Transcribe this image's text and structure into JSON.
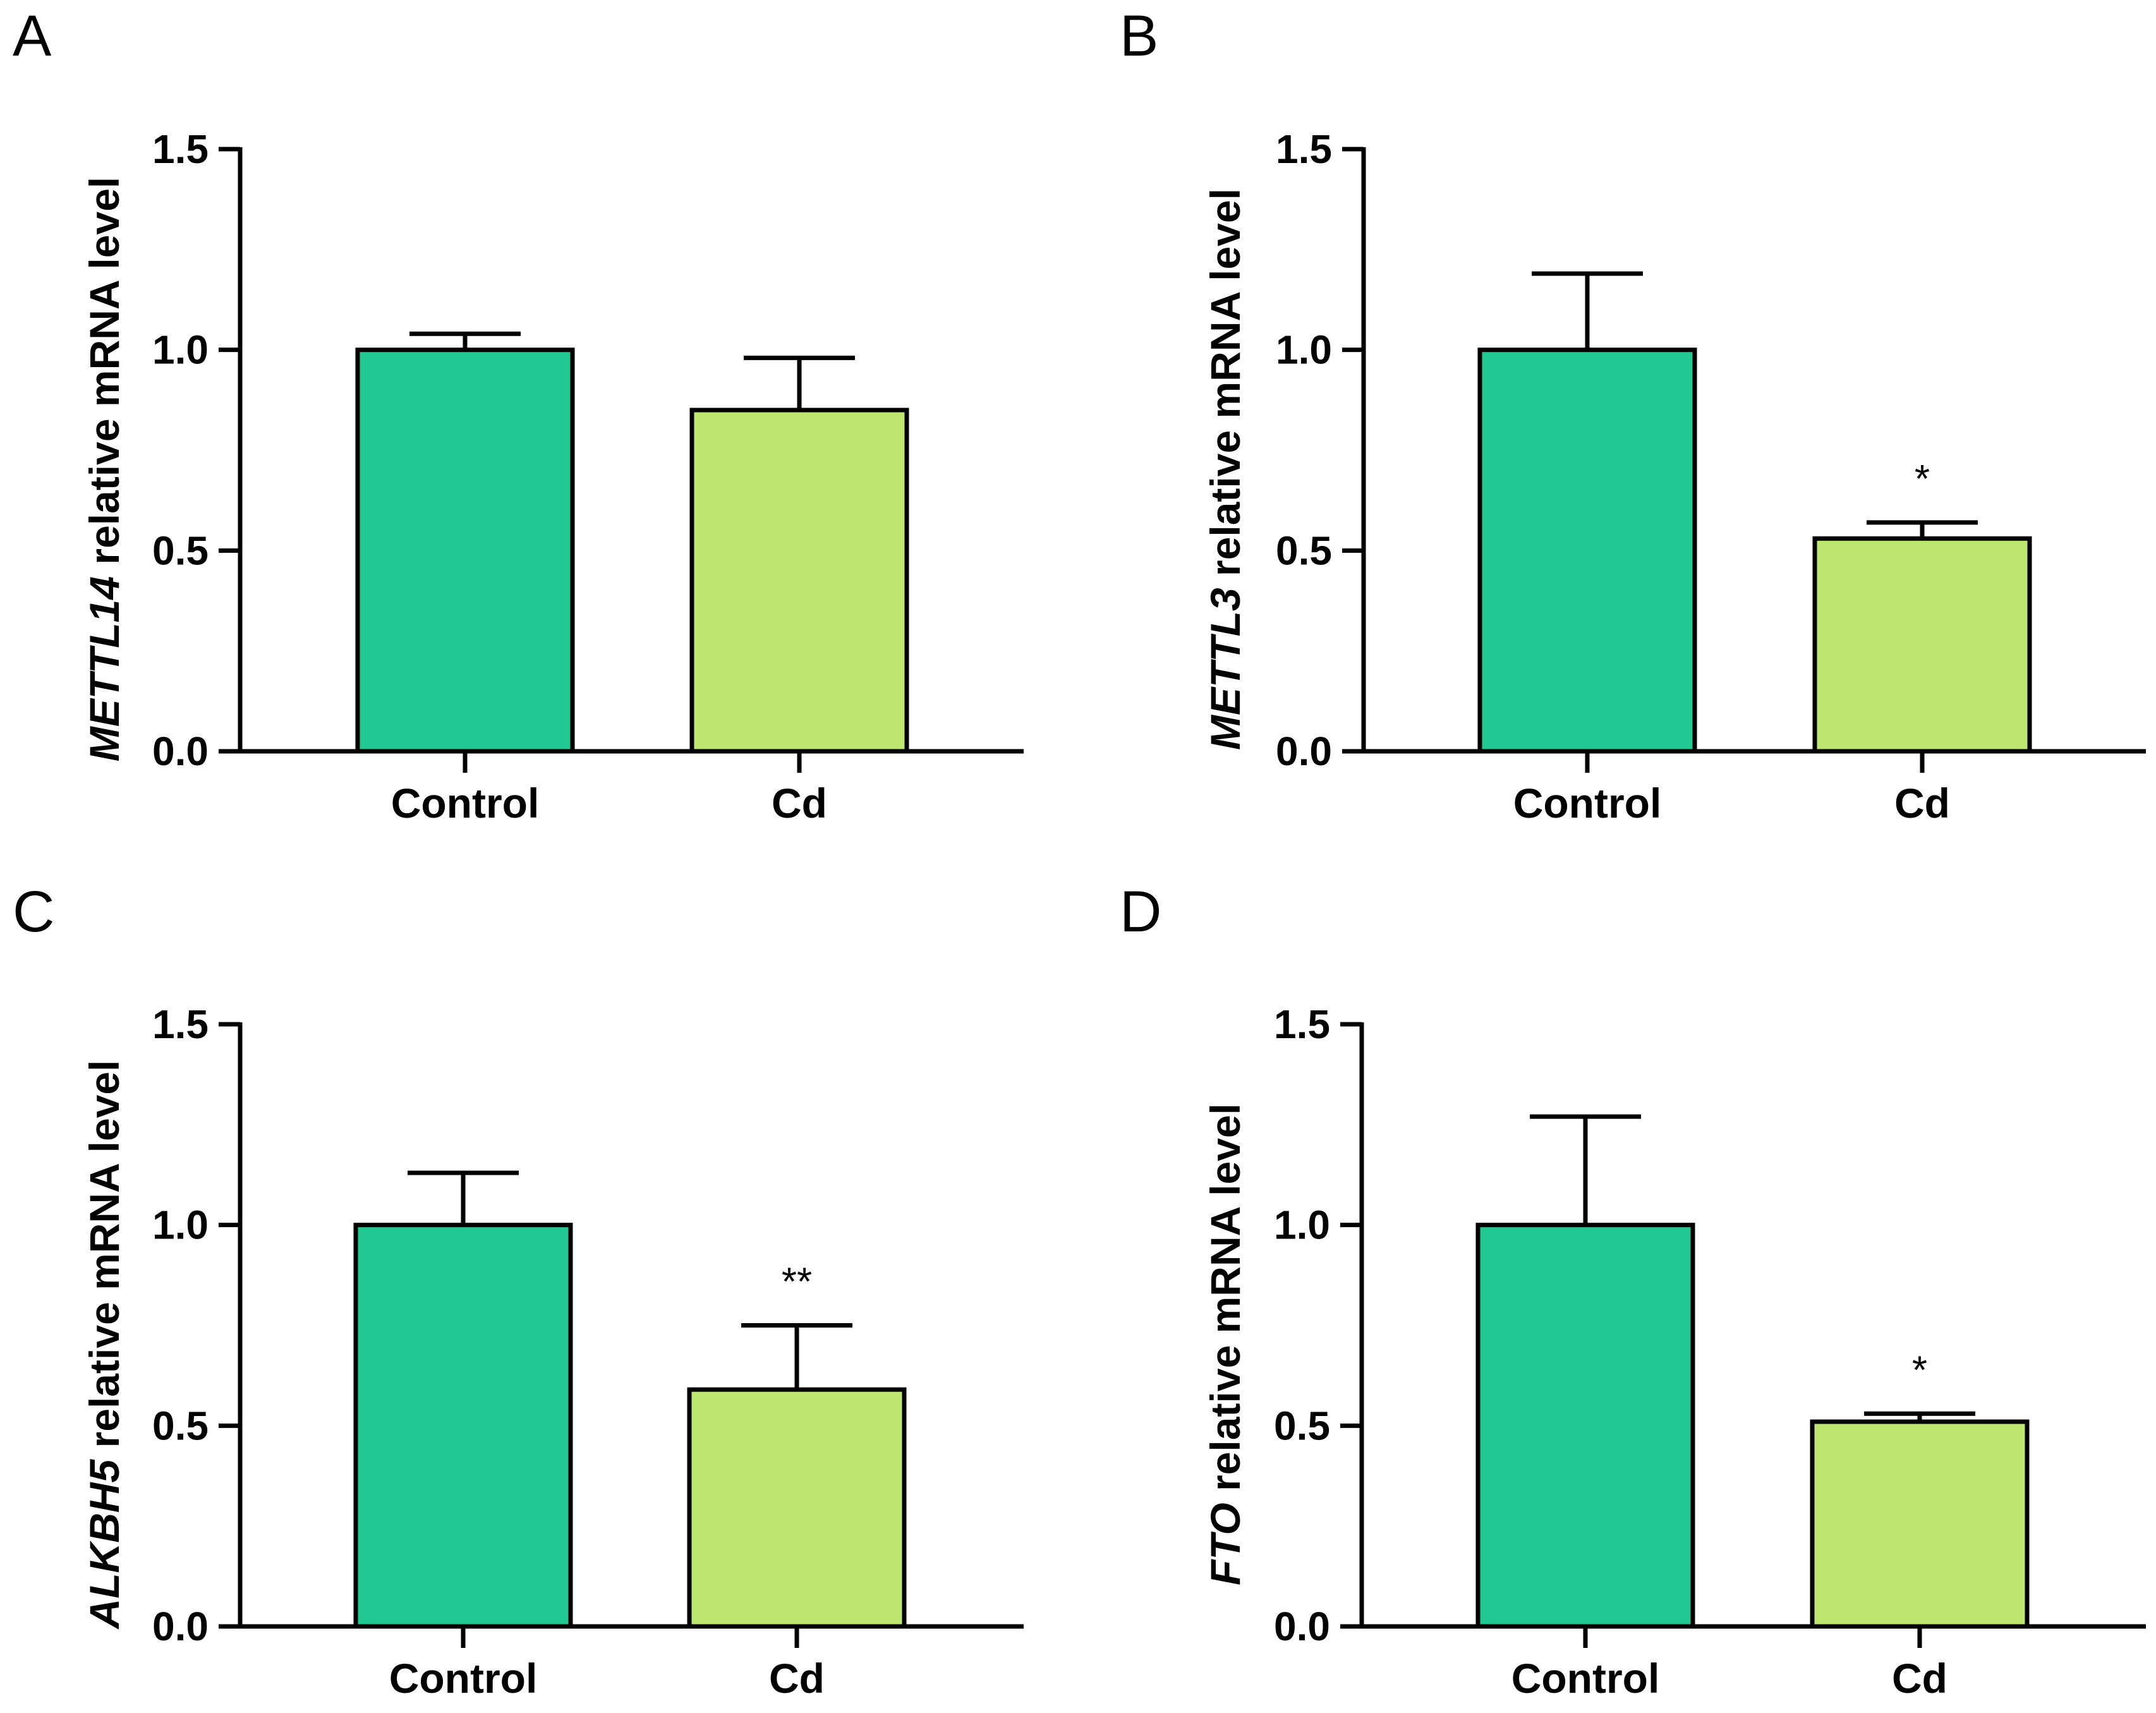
{
  "chart_data": [
    {
      "panel": "A",
      "type": "bar",
      "gene": "METTL14",
      "ylabel_suffix": " relative mRNA level",
      "categories": [
        "Control",
        "Cd"
      ],
      "values": [
        1.0,
        0.85
      ],
      "errors": [
        0.04,
        0.13
      ],
      "significance": [
        "",
        ""
      ],
      "colors": [
        "#23C792",
        "#BEE772"
      ],
      "ylim": [
        0,
        1.5
      ],
      "yticks": [
        0.0,
        0.5,
        1.0,
        1.5
      ],
      "ytick_labels": [
        "0.0",
        "0.5",
        "1.0",
        "1.5"
      ]
    },
    {
      "panel": "B",
      "type": "bar",
      "gene": "METTL3",
      "ylabel_suffix": " relative mRNA level",
      "categories": [
        "Control",
        "Cd"
      ],
      "values": [
        1.0,
        0.53
      ],
      "errors": [
        0.19,
        0.04
      ],
      "significance": [
        "",
        "*"
      ],
      "colors": [
        "#23C792",
        "#BEE772"
      ],
      "ylim": [
        0,
        1.5
      ],
      "yticks": [
        0.0,
        0.5,
        1.0,
        1.5
      ],
      "ytick_labels": [
        "0.0",
        "0.5",
        "1.0",
        "1.5"
      ]
    },
    {
      "panel": "C",
      "type": "bar",
      "gene": "ALKBH5",
      "ylabel_suffix": " relative mRNA level",
      "categories": [
        "Control",
        "Cd"
      ],
      "values": [
        1.0,
        0.59
      ],
      "errors": [
        0.13,
        0.16
      ],
      "significance": [
        "",
        "**"
      ],
      "colors": [
        "#23C792",
        "#BEE772"
      ],
      "ylim": [
        0,
        1.5
      ],
      "yticks": [
        0.0,
        0.5,
        1.0,
        1.5
      ],
      "ytick_labels": [
        "0.0",
        "0.5",
        "1.0",
        "1.5"
      ]
    },
    {
      "panel": "D",
      "type": "bar",
      "gene": "FTO",
      "ylabel_suffix": " relative mRNA level",
      "categories": [
        "Control",
        "Cd"
      ],
      "values": [
        1.0,
        0.51
      ],
      "errors": [
        0.27,
        0.02
      ],
      "significance": [
        "",
        "*"
      ],
      "colors": [
        "#23C792",
        "#BEE772"
      ],
      "ylim": [
        0,
        1.5
      ],
      "yticks": [
        0.0,
        0.5,
        1.0,
        1.5
      ],
      "ytick_labels": [
        "0.0",
        "0.5",
        "1.0",
        "1.5"
      ]
    }
  ]
}
